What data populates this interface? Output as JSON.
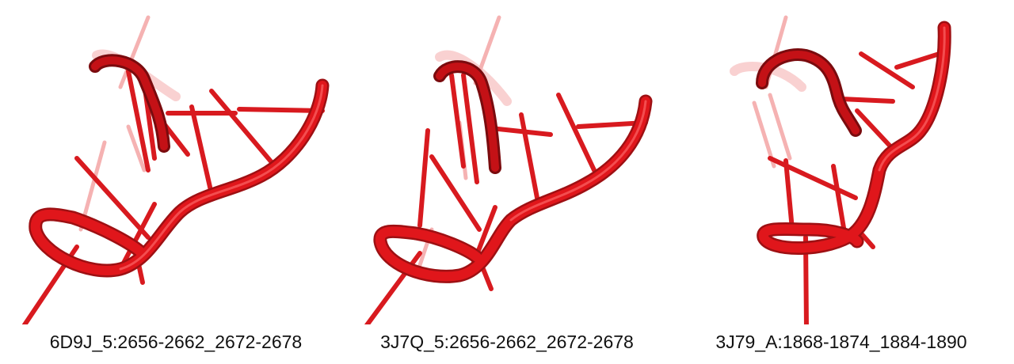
{
  "colors": {
    "strand": "#e0161b",
    "strand_shadow": "#8c0d10",
    "strand_highlight": "#ff6b6b",
    "background": "#ffffff"
  },
  "panels": [
    {
      "caption": "6D9J_5:2656-2662_2672-2678"
    },
    {
      "caption": "3J7Q_5:2656-2662_2672-2678"
    },
    {
      "caption": "3J79_A:1868-1874_1884-1890"
    }
  ]
}
